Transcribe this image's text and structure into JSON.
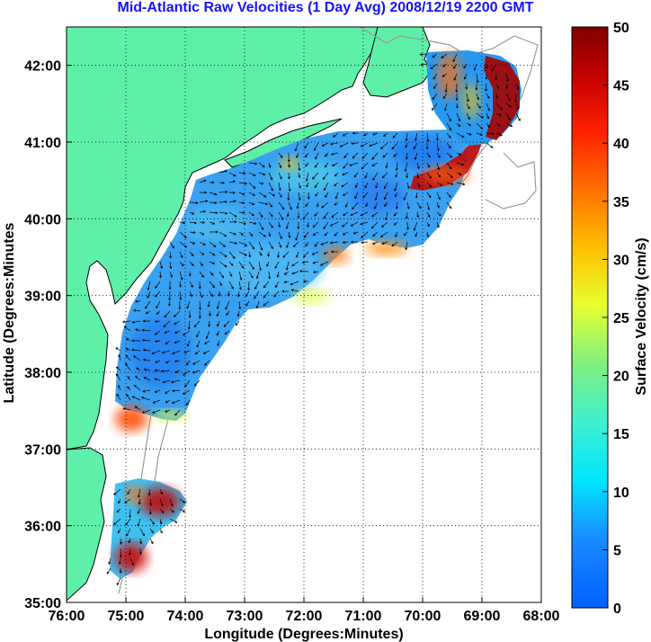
{
  "title": "Mid-Atlantic Raw Velocities (1 Day Avg) 2008/12/19 2200 GMT",
  "map": {
    "xlabel": "Longitude (Degrees:Minutes)",
    "ylabel": "Latitude (Degrees:Minutes",
    "x_ticks": [
      "76:00",
      "75:00",
      "74:00",
      "73:00",
      "72:00",
      "71:00",
      "70:00",
      "69:00",
      "68:00"
    ],
    "y_ticks": [
      "42:00",
      "41:00",
      "40:00",
      "39:00",
      "38:00",
      "37:00",
      "36:00",
      "35:00"
    ],
    "lon_range": [
      -76,
      -68
    ],
    "lat_range": [
      35,
      42.5
    ],
    "grid": true,
    "land_color": "#5ef0a8",
    "coast_color": "#000000",
    "bathymetry_color": "#9a9a9a"
  },
  "colorbar": {
    "label": "Surface Velocity (cm/s)",
    "ticks": [
      "50",
      "45",
      "40",
      "35",
      "30",
      "25",
      "20",
      "15",
      "10",
      "5",
      "0"
    ],
    "range": [
      0,
      50
    ],
    "colormap": "jet"
  }
}
